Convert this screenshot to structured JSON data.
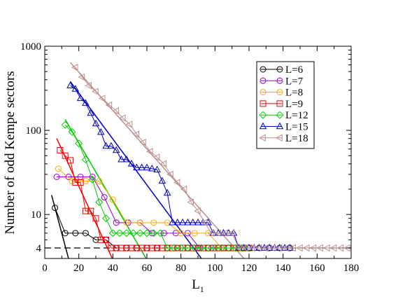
{
  "chart_data": {
    "type": "scatter",
    "title": "",
    "xlabel": "L",
    "xlabel_sub": "1",
    "ylabel": "Number of odd Kempe sectors",
    "xlim": [
      0,
      180
    ],
    "ylim": [
      3,
      1000
    ],
    "yscale": "log",
    "xticks": [
      0,
      20,
      40,
      60,
      80,
      100,
      120,
      140,
      160,
      180
    ],
    "yticks": [
      4,
      10,
      100,
      1000
    ],
    "grid": false,
    "legend_position": "top-right",
    "reference_line": {
      "y": 4,
      "style": "dashed",
      "color": "#000000"
    },
    "series": [
      {
        "name": "L=6",
        "color": "#000000",
        "marker": "circle",
        "x": [
          6,
          12,
          18,
          24,
          30,
          36,
          42,
          48,
          54,
          60,
          66,
          72,
          78,
          84,
          90,
          96,
          102,
          108,
          114,
          120,
          126,
          132,
          138,
          144
        ],
        "y": [
          12,
          6,
          6,
          6,
          5,
          5,
          4,
          4,
          4,
          4,
          4,
          4,
          4,
          4,
          4,
          4,
          4,
          4,
          4,
          4,
          4,
          4,
          4,
          4
        ],
        "fit": {
          "x": [
            4,
            15
          ],
          "y": [
            17,
            2.5
          ]
        }
      },
      {
        "name": "L=7",
        "color": "#9900cc",
        "marker": "circle",
        "x": [
          7,
          14,
          21,
          28,
          35,
          42,
          49,
          56,
          63,
          70,
          77,
          84,
          91,
          98,
          105,
          112
        ],
        "y": [
          28,
          28,
          28,
          28,
          16,
          8,
          8,
          8,
          6,
          6,
          6,
          6,
          4,
          4,
          4,
          4
        ]
      },
      {
        "name": "L=8",
        "color": "#ffaa00",
        "marker": "circle",
        "x": [
          8,
          16,
          24,
          32,
          40,
          48,
          56,
          64,
          72,
          80,
          88,
          96,
          104,
          112,
          120
        ],
        "y": [
          35,
          25,
          25,
          25,
          15,
          8,
          8,
          8,
          8,
          6,
          6,
          6,
          4,
          4,
          4
        ]
      },
      {
        "name": "L=9",
        "color": "#ff0000",
        "marker": "square",
        "x": [
          9,
          12,
          15,
          18,
          21,
          24,
          27,
          30,
          33,
          36,
          39,
          42,
          45,
          48,
          51,
          54,
          57,
          60,
          63,
          66,
          69,
          72,
          75,
          78,
          81,
          84,
          87,
          90,
          93,
          96,
          99,
          102,
          105,
          108,
          111,
          114,
          117,
          120
        ],
        "y": [
          58,
          50,
          44,
          24,
          24,
          11,
          11,
          9,
          5,
          5,
          4,
          4,
          4,
          4,
          4,
          4,
          4,
          4,
          4,
          4,
          4,
          4,
          4,
          4,
          4,
          4,
          4,
          4,
          4,
          4,
          4,
          4,
          4,
          4,
          4,
          4,
          4,
          4
        ],
        "fit": {
          "x": [
            7,
            40
          ],
          "y": [
            80,
            2.9
          ]
        }
      },
      {
        "name": "L=12",
        "color": "#00cc00",
        "marker": "diamond",
        "x": [
          12,
          16,
          20,
          24,
          28,
          32,
          36,
          40,
          44,
          48,
          52,
          56,
          60,
          64,
          68,
          72,
          76,
          80,
          84,
          88,
          92,
          96,
          100,
          104,
          108,
          112,
          116,
          120
        ],
        "y": [
          116,
          96,
          70,
          45,
          26,
          14,
          9,
          6,
          6,
          6,
          6,
          6,
          6,
          6,
          6,
          4,
          4,
          4,
          4,
          4,
          4,
          4,
          4,
          4,
          4,
          4,
          4,
          4
        ],
        "fit": {
          "x": [
            12,
            60
          ],
          "y": [
            135,
            2.9
          ]
        }
      },
      {
        "name": "L=15",
        "color": "#0000cc",
        "marker": "triangle",
        "x": [
          15,
          18,
          21,
          24,
          27,
          30,
          33,
          36,
          39,
          42,
          45,
          48,
          51,
          54,
          57,
          60,
          63,
          66,
          69,
          72,
          75,
          78,
          81,
          84,
          87,
          90,
          93,
          96,
          99,
          102,
          105,
          108,
          111,
          114,
          117,
          120,
          123,
          126,
          129,
          132,
          135,
          138,
          141,
          144
        ],
        "y": [
          340,
          310,
          240,
          210,
          160,
          120,
          95,
          65,
          65,
          58,
          45,
          45,
          40,
          36,
          36,
          36,
          35,
          34,
          25,
          18,
          8,
          8,
          8,
          8,
          8,
          8,
          8,
          8,
          6,
          6,
          6,
          6,
          6,
          4,
          4,
          4,
          4,
          4,
          4,
          4,
          4,
          4,
          4,
          4
        ],
        "fit": {
          "x": [
            15,
            92
          ],
          "y": [
            380,
            3
          ]
        }
      },
      {
        "name": "L=18",
        "color": "#bc8f8f",
        "marker": "triangle-left",
        "x": [
          18,
          22,
          26,
          30,
          34,
          38,
          42,
          46,
          50,
          54,
          58,
          62,
          66,
          70,
          74,
          78,
          82,
          86,
          90,
          94,
          98,
          102,
          106,
          110,
          114,
          118,
          122,
          126,
          130,
          134,
          138,
          142,
          146,
          150,
          154,
          158,
          162,
          166,
          170,
          174,
          178
        ],
        "y": [
          560,
          430,
          340,
          290,
          240,
          200,
          170,
          140,
          118,
          90,
          72,
          56,
          48,
          40,
          30,
          24,
          20,
          14,
          11,
          8,
          6,
          6,
          6,
          6,
          4,
          4,
          4,
          4,
          4,
          4,
          4,
          4,
          4,
          4,
          4,
          4,
          4,
          4,
          4,
          4,
          4
        ],
        "fit": {
          "x": [
            15,
            117
          ],
          "y": [
            640,
            3
          ]
        }
      }
    ]
  }
}
